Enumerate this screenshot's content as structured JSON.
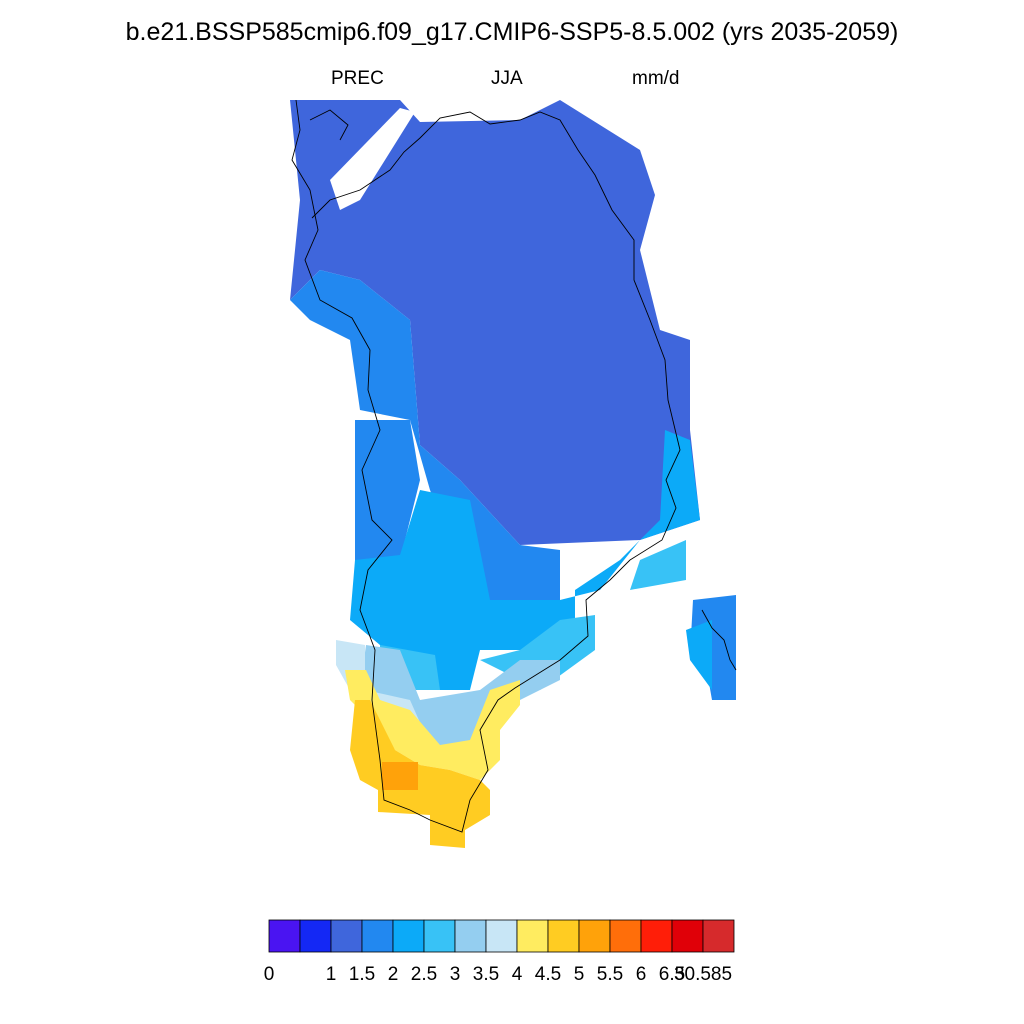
{
  "title": "b.e21.BSSP585cmip6.f09_g17.CMIP6-SSP5-8.5.002 (yrs 2035-2059)",
  "subtitle": {
    "left": "PREC",
    "center": "JJA",
    "right": "mm/d"
  },
  "map": {
    "region": "Greenland",
    "variable": "PREC",
    "season": "JJA",
    "units": "mm/d",
    "coastline": true
  },
  "colorbar": {
    "orientation": "horizontal",
    "placement": "bottom",
    "tick_labels": [
      "0",
      "1",
      "1.5",
      "2",
      "2.5",
      "3",
      "3.5",
      "4",
      "4.5",
      "5",
      "5.5",
      "6",
      "6.5",
      "30.585"
    ],
    "bins": [
      {
        "color": "#4A14F2"
      },
      {
        "color": "#1428F5"
      },
      {
        "color": "#3F66DC"
      },
      {
        "color": "#2288F0"
      },
      {
        "color": "#0CAAF8"
      },
      {
        "color": "#38C2F6"
      },
      {
        "color": "#94CEF0"
      },
      {
        "color": "#C8E6F6"
      },
      {
        "color": "#FFEC60"
      },
      {
        "color": "#FFCC22"
      },
      {
        "color": "#FFA20A"
      },
      {
        "color": "#FF6E0A"
      },
      {
        "color": "#FF1E08"
      },
      {
        "color": "#E00008"
      },
      {
        "color": "#D62A2C"
      }
    ]
  }
}
